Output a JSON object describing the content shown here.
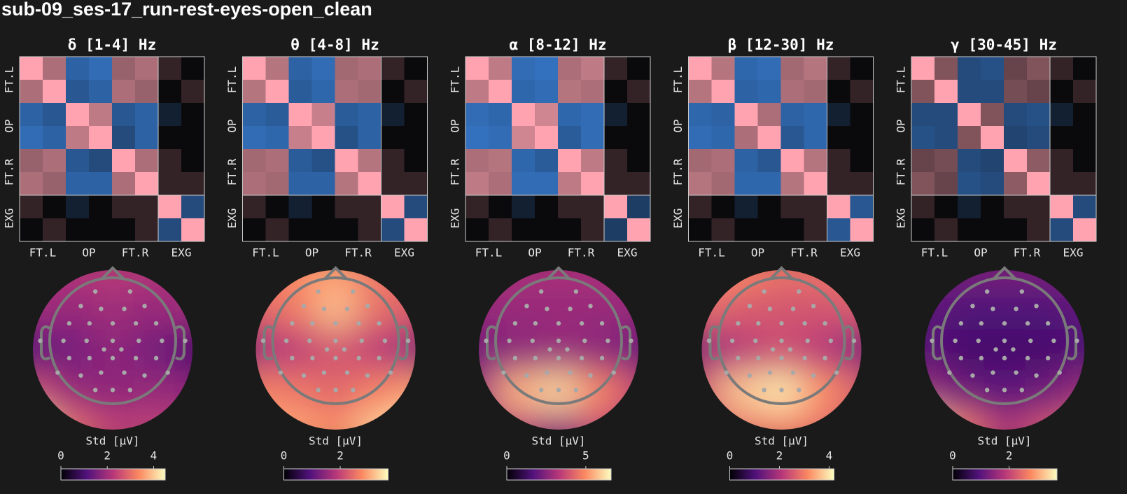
{
  "title": "sub-09_ses-17_run-rest-eyes-open_clean",
  "chart_data": [
    {
      "type": "heatmap",
      "title": "δ [1-4] Hz",
      "colormap": "diverging",
      "clim": [
        -1,
        1
      ],
      "categories": [
        "FT.L",
        "OP",
        "FT.R",
        "EXG"
      ],
      "values": [
        [
          1,
          0.5,
          -0.5,
          -0.6,
          0.4,
          0.5,
          0.05,
          0
        ],
        [
          0.5,
          1,
          -0.4,
          -0.5,
          0.5,
          0.4,
          0,
          0.05
        ],
        [
          -0.5,
          -0.4,
          1,
          0.6,
          -0.4,
          -0.5,
          -0.05,
          0
        ],
        [
          -0.6,
          -0.5,
          0.6,
          1,
          -0.3,
          -0.5,
          0,
          0
        ],
        [
          0.4,
          0.5,
          -0.4,
          -0.3,
          1,
          0.5,
          0.05,
          0
        ],
        [
          0.5,
          0.4,
          -0.5,
          -0.5,
          0.5,
          1,
          0.05,
          0.05
        ],
        [
          0.05,
          0,
          -0.05,
          0,
          0.05,
          0.05,
          1,
          -0.3
        ],
        [
          0,
          0.05,
          0,
          0,
          0,
          0.05,
          -0.3,
          1
        ]
      ]
    },
    {
      "type": "topomap",
      "xlabel": "Std [μV]",
      "colormap": "magma",
      "clim": [
        0,
        4.5
      ],
      "cticks": [
        0,
        2,
        4
      ],
      "values": [
        [
          2.2,
          2.2,
          2.3,
          2.2,
          2.2
        ],
        [
          2.0,
          1.9,
          2.0,
          1.9,
          2.0
        ],
        [
          1.2,
          1.5,
          1.8,
          1.5,
          1.0
        ],
        [
          2.6,
          1.9,
          1.8,
          1.9,
          1.8
        ],
        [
          4.2,
          3.0,
          2.4,
          2.4,
          2.3
        ]
      ]
    },
    {
      "type": "heatmap",
      "title": "θ [4-8] Hz",
      "colormap": "diverging",
      "clim": [
        -1,
        1
      ],
      "categories": [
        "FT.L",
        "OP",
        "FT.R",
        "EXG"
      ],
      "values": [
        [
          1,
          0.55,
          -0.5,
          -0.6,
          0.45,
          0.5,
          0.05,
          0
        ],
        [
          0.55,
          1,
          -0.45,
          -0.55,
          0.5,
          0.45,
          0,
          0.05
        ],
        [
          -0.5,
          -0.45,
          1,
          0.65,
          -0.45,
          -0.5,
          -0.05,
          0
        ],
        [
          -0.6,
          -0.55,
          0.65,
          1,
          -0.35,
          -0.5,
          0,
          0
        ],
        [
          0.45,
          0.5,
          -0.45,
          -0.35,
          1,
          0.55,
          0.05,
          0
        ],
        [
          0.5,
          0.45,
          -0.5,
          -0.5,
          0.55,
          1,
          0.05,
          0.05
        ],
        [
          0.05,
          0,
          -0.05,
          0,
          0.05,
          0.05,
          1,
          -0.3
        ],
        [
          0,
          0.05,
          0,
          0,
          0,
          0.05,
          -0.3,
          1
        ]
      ]
    },
    {
      "type": "topomap",
      "xlabel": "Std [μV]",
      "colormap": "magma",
      "clim": [
        0,
        3.7
      ],
      "cticks": [
        0,
        2
      ],
      "values": [
        [
          2.6,
          2.8,
          2.9,
          2.6,
          2.5
        ],
        [
          2.4,
          2.6,
          3.2,
          2.5,
          2.3
        ],
        [
          1.6,
          1.9,
          2.2,
          1.9,
          1.4
        ],
        [
          2.7,
          2.6,
          2.4,
          2.7,
          2.9
        ],
        [
          3.0,
          3.0,
          2.8,
          3.3,
          3.7
        ]
      ]
    },
    {
      "type": "heatmap",
      "title": "α [8-12] Hz",
      "colormap": "diverging",
      "clim": [
        -1,
        1
      ],
      "categories": [
        "FT.L",
        "OP",
        "FT.R",
        "EXG"
      ],
      "values": [
        [
          1,
          0.6,
          -0.6,
          -0.65,
          0.5,
          0.6,
          0.05,
          0
        ],
        [
          0.6,
          1,
          -0.55,
          -0.6,
          0.55,
          0.5,
          0,
          0.05
        ],
        [
          -0.6,
          -0.55,
          1,
          0.7,
          -0.55,
          -0.6,
          -0.05,
          0
        ],
        [
          -0.65,
          -0.6,
          0.7,
          1,
          -0.45,
          -0.6,
          0,
          0
        ],
        [
          0.5,
          0.55,
          -0.55,
          -0.45,
          1,
          0.6,
          0.05,
          0
        ],
        [
          0.6,
          0.5,
          -0.6,
          -0.6,
          0.6,
          1,
          0.05,
          0.05
        ],
        [
          0.05,
          0,
          -0.05,
          0,
          0.05,
          0.05,
          1,
          -0.2
        ],
        [
          0,
          0.05,
          0,
          0,
          0,
          0.05,
          -0.2,
          1
        ]
      ]
    },
    {
      "type": "topomap",
      "xlabel": "Std [μV]",
      "colormap": "magma",
      "clim": [
        0,
        6.6
      ],
      "cticks": [
        0,
        5
      ],
      "values": [
        [
          3.0,
          3.1,
          3.1,
          3.1,
          3.0
        ],
        [
          2.8,
          2.8,
          2.8,
          2.8,
          2.8
        ],
        [
          2.2,
          2.6,
          2.8,
          2.6,
          2.0
        ],
        [
          3.0,
          5.5,
          6.0,
          4.8,
          3.6
        ],
        [
          2.8,
          3.4,
          2.6,
          3.6,
          3.0
        ]
      ]
    },
    {
      "type": "heatmap",
      "title": "β [12-30] Hz",
      "colormap": "diverging",
      "clim": [
        -1,
        1
      ],
      "categories": [
        "FT.L",
        "OP",
        "FT.R",
        "EXG"
      ],
      "values": [
        [
          1,
          0.55,
          -0.55,
          -0.6,
          0.45,
          0.55,
          0.05,
          0
        ],
        [
          0.55,
          1,
          -0.5,
          -0.55,
          0.5,
          0.45,
          0,
          0.05
        ],
        [
          -0.55,
          -0.5,
          1,
          0.5,
          -0.5,
          -0.55,
          -0.05,
          0
        ],
        [
          -0.6,
          -0.55,
          0.5,
          1,
          -0.4,
          -0.55,
          0,
          0
        ],
        [
          0.45,
          0.5,
          -0.5,
          -0.4,
          1,
          0.55,
          0.05,
          0
        ],
        [
          0.55,
          0.45,
          -0.55,
          -0.55,
          0.55,
          1,
          0.05,
          0.05
        ],
        [
          0.05,
          0,
          -0.05,
          0,
          0.05,
          0.05,
          1,
          -0.4
        ],
        [
          0,
          0.05,
          0,
          0,
          0,
          0.05,
          -0.4,
          1
        ]
      ]
    },
    {
      "type": "topomap",
      "xlabel": "Std [μV]",
      "colormap": "magma",
      "clim": [
        0,
        4.2
      ],
      "cticks": [
        0,
        2,
        4
      ],
      "values": [
        [
          3.3,
          3.1,
          2.9,
          2.9,
          3.0
        ],
        [
          2.8,
          2.6,
          2.5,
          2.5,
          2.6
        ],
        [
          1.6,
          2.1,
          2.4,
          2.1,
          1.5
        ],
        [
          2.6,
          3.7,
          4.0,
          3.2,
          2.6
        ],
        [
          2.4,
          2.8,
          3.0,
          2.8,
          2.3
        ]
      ]
    },
    {
      "type": "heatmap",
      "title": "γ [30-45] Hz",
      "colormap": "diverging",
      "clim": [
        -1,
        1
      ],
      "categories": [
        "FT.L",
        "OP",
        "FT.R",
        "EXG"
      ],
      "values": [
        [
          1,
          0.3,
          -0.3,
          -0.35,
          0.2,
          0.3,
          0.05,
          0
        ],
        [
          0.3,
          1,
          -0.3,
          -0.3,
          0.25,
          0.2,
          0,
          0.05
        ],
        [
          -0.3,
          -0.3,
          1,
          0.3,
          -0.3,
          -0.35,
          -0.05,
          0
        ],
        [
          -0.35,
          -0.3,
          0.3,
          1,
          -0.25,
          -0.3,
          0,
          0
        ],
        [
          0.2,
          0.25,
          -0.3,
          -0.25,
          1,
          0.35,
          0.05,
          0
        ],
        [
          0.3,
          0.2,
          -0.35,
          -0.3,
          0.35,
          1,
          0.05,
          0.05
        ],
        [
          0.05,
          0,
          -0.05,
          0,
          0.05,
          0.05,
          1,
          -0.3
        ],
        [
          0,
          0.05,
          0,
          0,
          0,
          0.05,
          -0.3,
          1
        ]
      ]
    },
    {
      "type": "topomap",
      "xlabel": "Std [μV]",
      "colormap": "magma",
      "clim": [
        0,
        3.7
      ],
      "cticks": [
        0,
        2
      ],
      "values": [
        [
          1.4,
          1.3,
          1.3,
          1.3,
          1.4
        ],
        [
          1.1,
          0.9,
          0.9,
          0.9,
          1.1
        ],
        [
          1.0,
          0.8,
          0.8,
          0.8,
          0.9
        ],
        [
          1.6,
          1.2,
          1.0,
          1.2,
          1.6
        ],
        [
          3.4,
          2.6,
          1.8,
          2.2,
          2.5
        ]
      ]
    }
  ]
}
